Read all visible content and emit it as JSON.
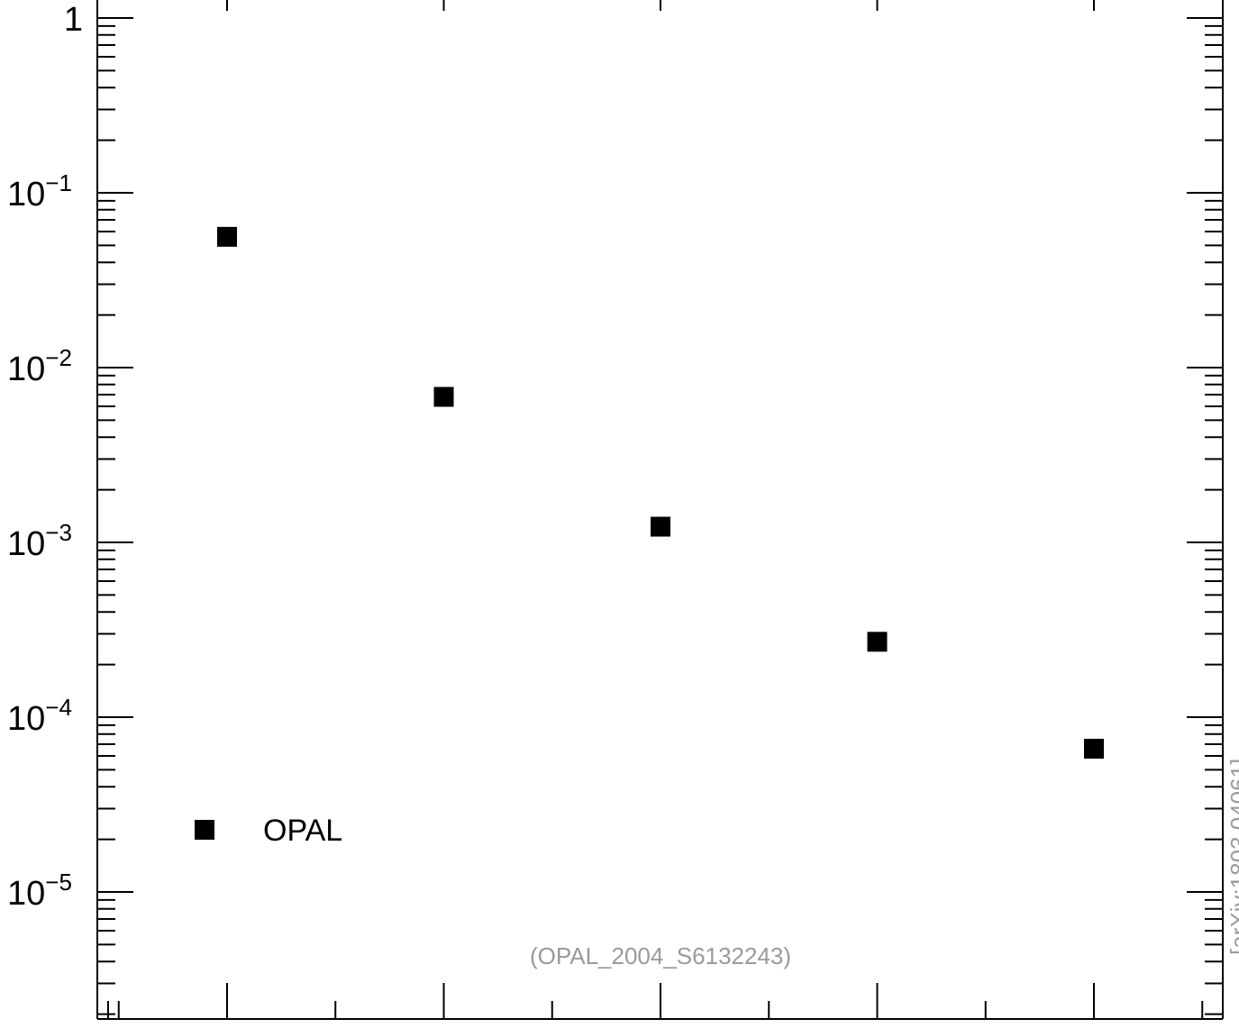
{
  "chart_data": {
    "type": "scatter",
    "title": "",
    "xlabel": "",
    "ylabel": "",
    "y_scale": "log",
    "ylim": [
      2e-06,
      2.0
    ],
    "xlim": [
      0.55,
      5.6
    ],
    "grid": false,
    "legend_position": "bottom-left",
    "y_ticks": [
      {
        "value": 1,
        "mantissa": "1",
        "exponent": ""
      },
      {
        "value": 0.1,
        "mantissa": "10",
        "exponent": "−1"
      },
      {
        "value": 0.01,
        "mantissa": "10",
        "exponent": "−2"
      },
      {
        "value": 0.001,
        "mantissa": "10",
        "exponent": "−3"
      },
      {
        "value": 0.0001,
        "mantissa": "10",
        "exponent": "−4"
      },
      {
        "value": 1e-05,
        "mantissa": "10",
        "exponent": "−5"
      }
    ],
    "series": [
      {
        "name": "OPAL",
        "color": "#000000",
        "marker": "square",
        "x": [
          1,
          2,
          3,
          4,
          5
        ],
        "y": [
          0.056,
          0.0068,
          0.00123,
          0.00027,
          6.6e-05
        ]
      }
    ]
  },
  "annotation": "(OPAL_2004_S6132243)",
  "side_text": "[arXiv:1803.04061]"
}
